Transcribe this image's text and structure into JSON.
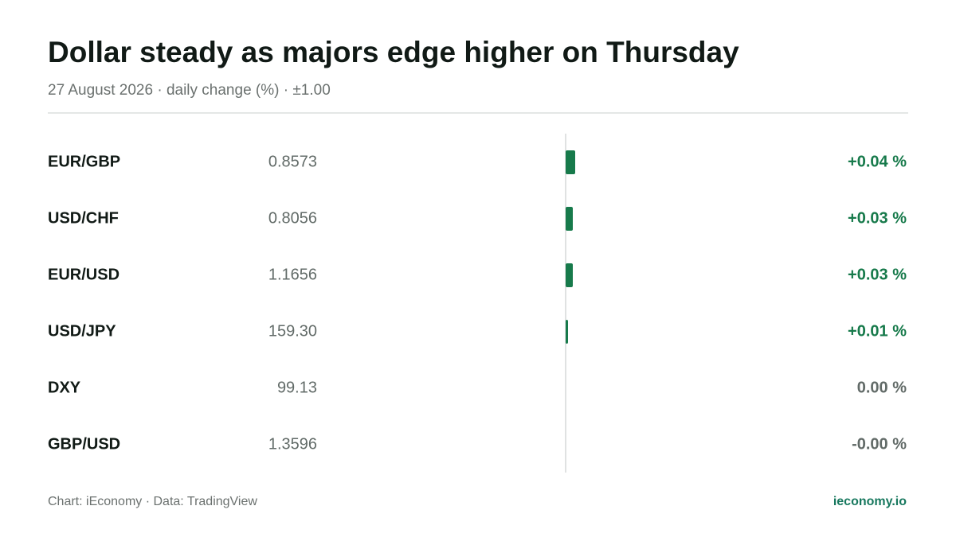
{
  "chart_data": {
    "type": "bar",
    "orientation": "horizontal",
    "title": "Dollar steady as majors edge higher on Thursday",
    "subtitle": "27 August 2026 · daily change (%) · ±1.00",
    "categories": [
      "EUR/GBP",
      "USD/CHF",
      "EUR/USD",
      "USD/JPY",
      "DXY",
      "GBP/USD"
    ],
    "prices": [
      "0.8573",
      "0.8056",
      "1.1656",
      "159.30",
      "99.13",
      "1.3596"
    ],
    "values": [
      0.04,
      0.03,
      0.03,
      0.01,
      0,
      0
    ],
    "value_labels": [
      "+0.04 %",
      "+0.03 %",
      "+0.03 %",
      "+0.01 %",
      "0.00 %",
      "-0.00 %"
    ],
    "xlim": [
      -1,
      1
    ],
    "color": "#177a4b",
    "neutral_color": "#626b68",
    "source": "Chart: iEconomy · Data: TradingView",
    "brand": "ieconomy.io"
  }
}
